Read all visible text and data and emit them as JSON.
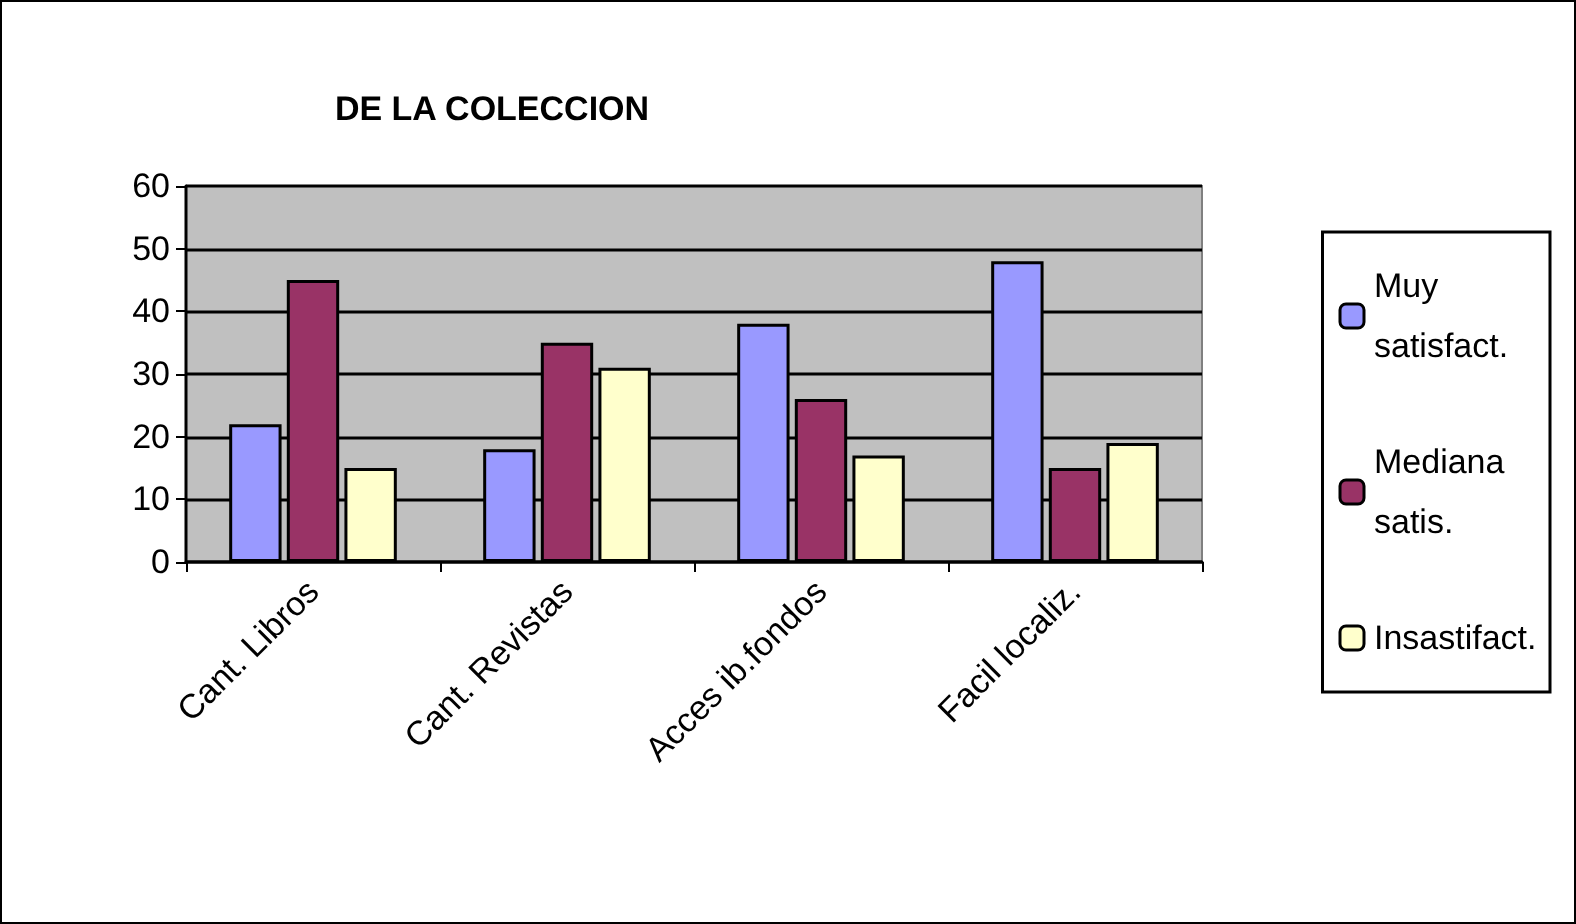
{
  "chart_data": {
    "type": "bar",
    "title": "DE LA COLECCION",
    "categories": [
      "Cant. Libros",
      "Cant. Revistas",
      "Acces ib.fondos",
      "Facil localiz."
    ],
    "series": [
      {
        "name": "Muy satisfact.",
        "color": "#9999ff",
        "values": [
          22,
          18,
          38,
          48
        ]
      },
      {
        "name": "Mediana satis.",
        "color": "#993366",
        "values": [
          45,
          35,
          26,
          15
        ]
      },
      {
        "name": "Insastifact.",
        "color": "#ffffcc",
        "values": [
          15,
          31,
          17,
          19
        ]
      }
    ],
    "ylim": [
      0,
      60
    ],
    "yticks": [
      0,
      10,
      20,
      30,
      40,
      50,
      60
    ],
    "grid": "y",
    "legend": "right"
  }
}
